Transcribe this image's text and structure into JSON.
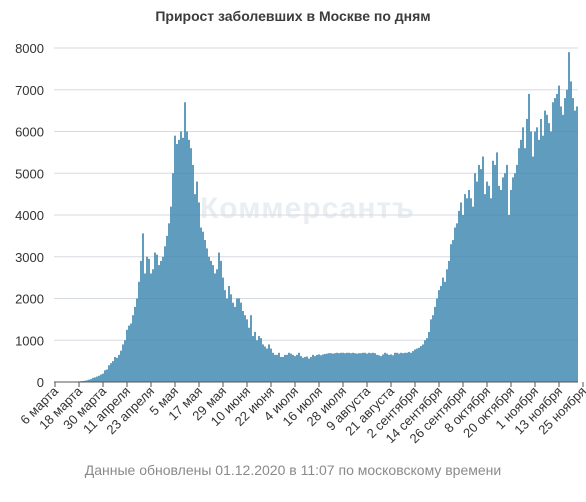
{
  "watermark": "Коммерсантъ",
  "footnote": "Данные обновлены 01.12.2020 в 11:07 по московскому времени",
  "colors": {
    "bar": "#3d86b0",
    "grid": "#d6dbe0",
    "axis": "#555555"
  },
  "chart_data": {
    "type": "bar",
    "title": "Прирост заболевших в Москве по дням",
    "xlabel": "",
    "ylabel": "",
    "ylim": [
      0,
      8000
    ],
    "yticks": [
      0,
      1000,
      2000,
      3000,
      4000,
      5000,
      6000,
      7000,
      8000
    ],
    "grid": true,
    "legend": "none",
    "start_date": "2020-03-06",
    "x_tick_labels": [
      {
        "label": "6 марта",
        "day_index": 0
      },
      {
        "label": "18 марта",
        "day_index": 12
      },
      {
        "label": "30 марта",
        "day_index": 24
      },
      {
        "label": "11 апреля",
        "day_index": 36
      },
      {
        "label": "23 апреля",
        "day_index": 48
      },
      {
        "label": "5 мая",
        "day_index": 60
      },
      {
        "label": "17 мая",
        "day_index": 72
      },
      {
        "label": "29 мая",
        "day_index": 84
      },
      {
        "label": "10 июня",
        "day_index": 96
      },
      {
        "label": "22 июня",
        "day_index": 108
      },
      {
        "label": "4 июля",
        "day_index": 120
      },
      {
        "label": "16 июля",
        "day_index": 132
      },
      {
        "label": "28 июля",
        "day_index": 144
      },
      {
        "label": "9 августа",
        "day_index": 156
      },
      {
        "label": "21 августа",
        "day_index": 168
      },
      {
        "label": "2 сентября",
        "day_index": 180
      },
      {
        "label": "14 сентября",
        "day_index": 192
      },
      {
        "label": "26 сентября",
        "day_index": 204
      },
      {
        "label": "8 октября",
        "day_index": 216
      },
      {
        "label": "20 октября",
        "day_index": 228
      },
      {
        "label": "1 ноября",
        "day_index": 240
      },
      {
        "label": "13 ноября",
        "day_index": 252
      },
      {
        "label": "25 ноября",
        "day_index": 264
      }
    ],
    "values": [
      1,
      1,
      1,
      2,
      2,
      3,
      3,
      3,
      4,
      4,
      6,
      10,
      15,
      20,
      25,
      30,
      40,
      55,
      70,
      100,
      110,
      130,
      150,
      180,
      200,
      280,
      300,
      400,
      450,
      500,
      600,
      580,
      650,
      750,
      900,
      1000,
      1250,
      1350,
      1400,
      1600,
      1800,
      2000,
      2400,
      2900,
      3560,
      2600,
      3000,
      2950,
      2600,
      2700,
      3100,
      3050,
      2800,
      2900,
      3000,
      3250,
      3500,
      3800,
      4200,
      5000,
      5900,
      5700,
      5800,
      6000,
      5850,
      6700,
      6000,
      5800,
      5600,
      5200,
      4500,
      4800,
      4300,
      3700,
      3600,
      3400,
      3200,
      3000,
      2900,
      2800,
      2600,
      2700,
      3100,
      2900,
      2500,
      2200,
      2000,
      2300,
      2100,
      1900,
      1800,
      2000,
      2000,
      1900,
      1700,
      1600,
      1500,
      1300,
      1600,
      1100,
      1200,
      1000,
      1100,
      1050,
      900,
      850,
      800,
      900,
      800,
      700,
      650,
      650,
      700,
      600,
      600,
      650,
      650,
      700,
      680,
      650,
      620,
      650,
      700,
      620,
      580,
      600,
      610,
      560,
      600,
      650,
      620,
      650,
      660,
      640,
      660,
      670,
      680,
      690,
      690,
      680,
      690,
      700,
      690,
      700,
      700,
      690,
      700,
      700,
      690,
      700,
      690,
      680,
      690,
      690,
      700,
      700,
      680,
      700,
      690,
      700,
      690,
      650,
      640,
      620,
      660,
      700,
      680,
      650,
      660,
      640,
      700,
      700,
      680,
      700,
      690,
      700,
      700,
      720,
      700,
      740,
      780,
      800,
      820,
      860,
      900,
      1000,
      1050,
      1200,
      1500,
      1600,
      1800,
      2000,
      2200,
      2300,
      2500,
      2400,
      2700,
      2900,
      3300,
      3400,
      3700,
      3800,
      4100,
      4300,
      4000,
      4500,
      4400,
      4600,
      4400,
      4200,
      5000,
      4800,
      5200,
      5100,
      5400,
      4500,
      4800,
      4700,
      4400,
      5300,
      5200,
      5500,
      4700,
      4600,
      4900,
      5000,
      5200,
      4000,
      4600,
      4900,
      5000,
      5200,
      5600,
      5800,
      6100,
      5600,
      6300,
      6900,
      6000,
      5400,
      6000,
      6100,
      5800,
      6300,
      5900,
      6500,
      6400,
      6200,
      6000,
      6700,
      6800,
      6900,
      7100,
      6600,
      6400,
      6800,
      7000,
      7900,
      7200,
      6800,
      6500,
      6600
    ]
  }
}
